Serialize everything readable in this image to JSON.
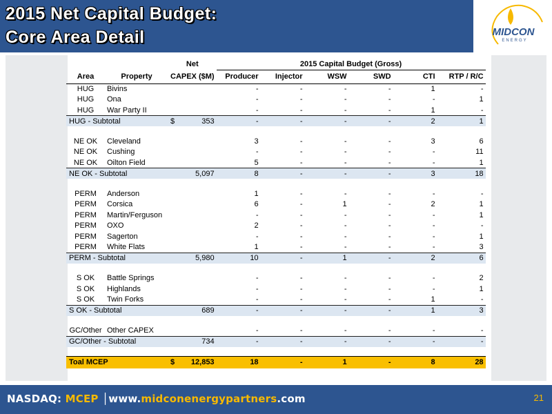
{
  "header": {
    "title_line1": "2015 Net Capital Budget:",
    "title_line2": "Core Area Detail",
    "logo_text": "MIDCON",
    "logo_subtext": "ENERGY"
  },
  "table": {
    "header_top": {
      "net": "Net",
      "group": "2015 Capital Budget (Gross)"
    },
    "columns": [
      "Area",
      "Property",
      "CAPEX ($M)",
      "Producer",
      "Injector",
      "WSW",
      "SWD",
      "CTI",
      "RTP / R/C"
    ],
    "hug": {
      "rows": [
        [
          "HUG",
          "Bivins",
          "-",
          "-",
          "-",
          "-",
          "1",
          "-"
        ],
        [
          "HUG",
          "Ona",
          "-",
          "-",
          "-",
          "-",
          "-",
          "1"
        ],
        [
          "HUG",
          "War Party II",
          "-",
          "-",
          "-",
          "-",
          "1",
          "-"
        ]
      ],
      "subtotal": {
        "label": "HUG - Subtotal",
        "dollar": "$",
        "capex": "353",
        "vals": [
          "-",
          "-",
          "-",
          "-",
          "2",
          "1"
        ]
      }
    },
    "neok": {
      "rows": [
        [
          "NE OK",
          "Cleveland",
          "3",
          "-",
          "-",
          "-",
          "3",
          "6"
        ],
        [
          "NE OK",
          "Cushing",
          "-",
          "-",
          "-",
          "-",
          "-",
          "11"
        ],
        [
          "NE OK",
          "Oilton Field",
          "5",
          "-",
          "-",
          "-",
          "-",
          "1"
        ]
      ],
      "subtotal": {
        "label": "NE OK - Subtotal",
        "capex": "5,097",
        "vals": [
          "8",
          "-",
          "-",
          "-",
          "3",
          "18"
        ]
      }
    },
    "perm": {
      "rows": [
        [
          "PERM",
          "Anderson",
          "1",
          "-",
          "-",
          "-",
          "-",
          "-"
        ],
        [
          "PERM",
          "Corsica",
          "6",
          "-",
          "1",
          "-",
          "2",
          "1"
        ],
        [
          "PERM",
          "Martin/Ferguson",
          "-",
          "-",
          "-",
          "-",
          "-",
          "1"
        ],
        [
          "PERM",
          "OXO",
          "2",
          "-",
          "-",
          "-",
          "-",
          "-"
        ],
        [
          "PERM",
          "Sagerton",
          "-",
          "-",
          "-",
          "-",
          "-",
          "1"
        ],
        [
          "PERM",
          "White Flats",
          "1",
          "-",
          "-",
          "-",
          "-",
          "3"
        ]
      ],
      "subtotal": {
        "label": "PERM - Subtotal",
        "capex": "5,980",
        "vals": [
          "10",
          "-",
          "1",
          "-",
          "2",
          "6"
        ]
      }
    },
    "sok": {
      "rows": [
        [
          "S OK",
          "Battle Springs",
          "-",
          "-",
          "-",
          "-",
          "-",
          "2"
        ],
        [
          "S OK",
          "Highlands",
          "-",
          "-",
          "-",
          "-",
          "-",
          "1"
        ],
        [
          "S OK",
          "Twin Forks",
          "-",
          "-",
          "-",
          "-",
          "1",
          "-"
        ]
      ],
      "subtotal": {
        "label": "S OK - Subtotal",
        "capex": "689",
        "vals": [
          "-",
          "-",
          "-",
          "-",
          "1",
          "3"
        ]
      }
    },
    "gc": {
      "rows": [
        [
          "GC/Other",
          "Other CAPEX",
          "-",
          "-",
          "-",
          "-",
          "-",
          "-"
        ]
      ],
      "subtotal": {
        "label": "GC/Other - Subtotal",
        "capex": "734",
        "vals": [
          "-",
          "-",
          "-",
          "-",
          "-",
          "-"
        ]
      }
    },
    "total": {
      "label": "Toal MCEP",
      "dollar": "$",
      "capex": "12,853",
      "vals": [
        "18",
        "-",
        "1",
        "-",
        "8",
        "28"
      ]
    }
  },
  "footer": {
    "nasdaq": "NASDAQ: ",
    "ticker": "MCEP",
    "www": "www.",
    "domain": "midconenergypartners",
    "tld": ".com",
    "page": "21"
  },
  "colors": {
    "brand_blue": "#2d5590",
    "accent_gold": "#f7b900",
    "subtotal_fill": "#dce6f1",
    "total_fill": "#f9bf00"
  }
}
